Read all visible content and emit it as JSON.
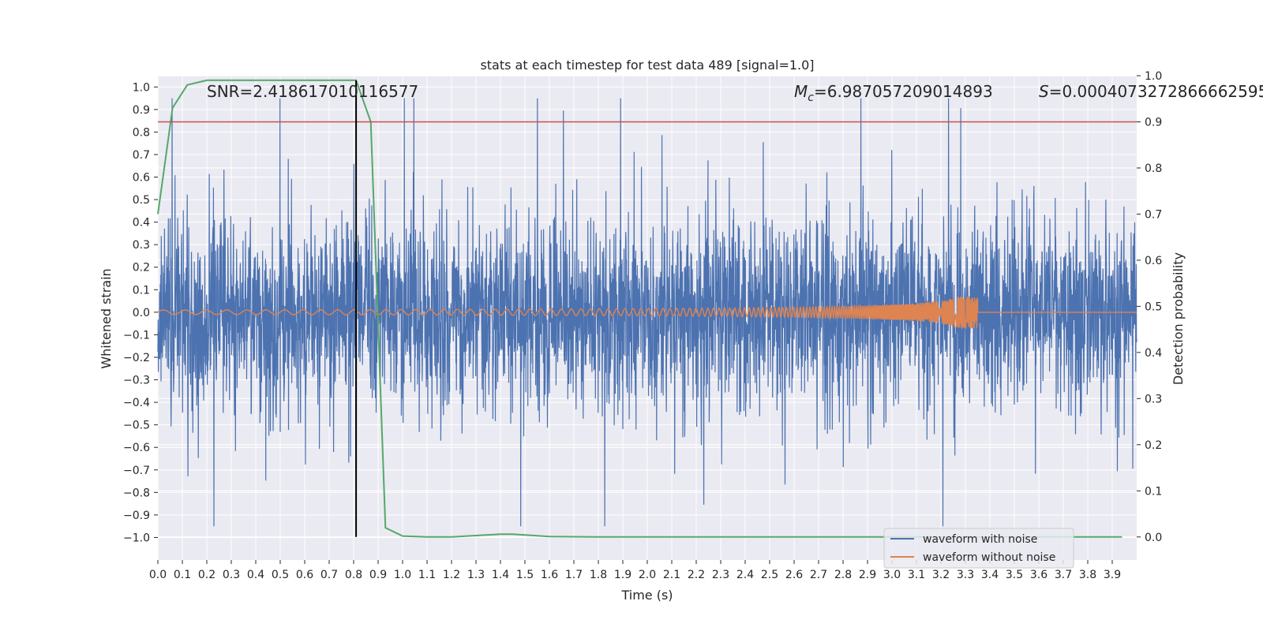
{
  "chart_data": {
    "type": "line",
    "title": "stats at each timestep for test data 489 [signal=1.0]",
    "xlabel": "Time (s)",
    "ylabel_left": "Whitened strain",
    "ylabel_right": "Detection probability",
    "xlim": [
      0.0,
      4.0
    ],
    "ylim_left": [
      -1.1,
      1.05
    ],
    "ylim_right": [
      -0.05,
      1.0
    ],
    "x_ticks": [
      "0.0",
      "0.1",
      "0.2",
      "0.3",
      "0.4",
      "0.5",
      "0.6",
      "0.7",
      "0.8",
      "0.9",
      "1.0",
      "1.1",
      "1.2",
      "1.3",
      "1.4",
      "1.5",
      "1.6",
      "1.7",
      "1.8",
      "1.9",
      "2.0",
      "2.1",
      "2.2",
      "2.3",
      "2.4",
      "2.5",
      "2.6",
      "2.7",
      "2.8",
      "2.9",
      "3.0",
      "3.1",
      "3.2",
      "3.3",
      "3.4",
      "3.5",
      "3.6",
      "3.7",
      "3.8",
      "3.9"
    ],
    "y_ticks_left": [
      "−1.0",
      "−0.9",
      "−0.8",
      "−0.7",
      "−0.6",
      "−0.5",
      "−0.4",
      "−0.3",
      "−0.2",
      "−0.1",
      "0.0",
      "0.1",
      "0.2",
      "0.3",
      "0.4",
      "0.5",
      "0.6",
      "0.7",
      "0.8",
      "0.9",
      "1.0"
    ],
    "y_ticks_right": [
      "0.0",
      "0.1",
      "0.2",
      "0.3",
      "0.4",
      "0.5",
      "0.6",
      "0.7",
      "0.8",
      "0.9",
      "1.0"
    ],
    "annotations": {
      "snr": "SNR=2.418617010116577",
      "mc_symbol": "M",
      "mc_sub": "c",
      "mc_value": "=6.987057209014893",
      "s_symbol": "S",
      "s_value": "=0.0004073272866662595"
    },
    "legend": [
      {
        "label": "waveform with noise",
        "color": "#4c72b0"
      },
      {
        "label": "waveform without noise",
        "color": "#dd8452"
      }
    ],
    "threshold_right": 0.9,
    "threshold_color": "#c44e52",
    "vertical_marker_x": 0.81,
    "noise_series": {
      "name": "waveform with noise",
      "color": "#4c72b0",
      "generated": true,
      "amplitude_range": [
        -0.95,
        0.95
      ],
      "typical_peak": 0.45
    },
    "signal_series": {
      "name": "waveform without noise",
      "color": "#dd8452",
      "start_amplitude": 0.01,
      "end_amplitude": 0.07,
      "end_time": 3.35
    },
    "probability_series": {
      "name": "detection probability",
      "color": "#55a868",
      "x": [
        0.0,
        0.06,
        0.12,
        0.2,
        0.3,
        0.4,
        0.5,
        0.6,
        0.7,
        0.75,
        0.81,
        0.87,
        0.93,
        1.0,
        1.1,
        1.2,
        1.3,
        1.4,
        1.45,
        1.6,
        1.8,
        2.0,
        2.5,
        3.0,
        3.5,
        3.94
      ],
      "y": [
        0.7,
        0.93,
        0.98,
        0.99,
        0.99,
        0.99,
        0.99,
        0.99,
        0.99,
        0.99,
        0.99,
        0.9,
        0.02,
        0.002,
        0.0,
        0.0,
        0.003,
        0.006,
        0.006,
        0.001,
        0.0,
        0.0,
        0.0,
        0.0,
        0.0,
        0.0
      ]
    }
  }
}
